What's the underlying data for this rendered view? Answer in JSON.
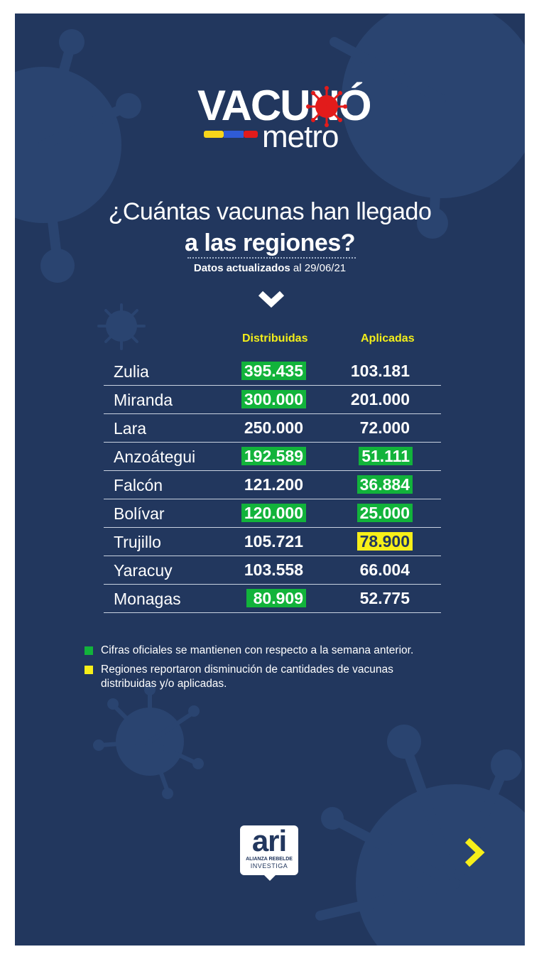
{
  "logo": {
    "word1": "VACUNÓ",
    "word2": "metro"
  },
  "title": {
    "line1": "¿Cuántas vacunas han llegado",
    "line2": "a las regiones?"
  },
  "updated": {
    "label": "Datos actualizados",
    "date": "al 29/06/21"
  },
  "columns": {
    "distributed": "Distribuidas",
    "applied": "Aplicadas"
  },
  "rows": [
    {
      "region": "Zulia",
      "distributed": "395.435",
      "distributed_mark": "green",
      "applied": "103.181",
      "applied_mark": "none"
    },
    {
      "region": "Miranda",
      "distributed": "300.000",
      "distributed_mark": "green",
      "applied": "201.000",
      "applied_mark": "none"
    },
    {
      "region": "Lara",
      "distributed": "250.000",
      "distributed_mark": "none",
      "applied": "72.000",
      "applied_mark": "none"
    },
    {
      "region": "Anzoátegui",
      "distributed": "192.589",
      "distributed_mark": "green",
      "applied": "51.111",
      "applied_mark": "green"
    },
    {
      "region": "Falcón",
      "distributed": "121.200",
      "distributed_mark": "none",
      "applied": "36.884",
      "applied_mark": "green"
    },
    {
      "region": "Bolívar",
      "distributed": "120.000",
      "distributed_mark": "green",
      "applied": "25.000",
      "applied_mark": "green"
    },
    {
      "region": "Trujillo",
      "distributed": "105.721",
      "distributed_mark": "none",
      "applied": "78.900",
      "applied_mark": "yellow"
    },
    {
      "region": "Yaracuy",
      "distributed": "103.558",
      "distributed_mark": "none",
      "applied": "66.004",
      "applied_mark": "none"
    },
    {
      "region": "Monagas",
      "distributed": "80.909",
      "distributed_mark": "green",
      "applied": "52.775",
      "applied_mark": "none"
    }
  ],
  "legend": [
    {
      "color": "#12b33b",
      "text": "Cifras oficiales se mantienen con respecto a la semana anterior."
    },
    {
      "color": "#f7ef19",
      "text": "Regiones reportaron disminución de cantidades de vacunas distribuidas y/o aplicadas."
    }
  ],
  "brand": {
    "name": "ari",
    "sub1": "ALIANZA REBELDE",
    "sub2": "INVESTIGA"
  },
  "icons": {
    "down": "chevron-down-icon",
    "next": "chevron-right-icon",
    "virus": "virus-icon",
    "syringe": "syringe-icon"
  },
  "colors": {
    "background": "#22375e",
    "green": "#12b33b",
    "yellow": "#f7ef19",
    "virus_red": "#e21b1b"
  }
}
